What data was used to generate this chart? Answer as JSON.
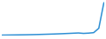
{
  "x": [
    0,
    1,
    2,
    3,
    4,
    5,
    6,
    7,
    8,
    9,
    10,
    11,
    12,
    13,
    14,
    15,
    16,
    17,
    18,
    19,
    20
  ],
  "y": [
    100,
    102,
    104,
    106,
    108,
    110,
    113,
    116,
    120,
    124,
    128,
    133,
    138,
    144,
    150,
    156,
    145,
    152,
    165,
    280,
    950
  ],
  "line_color": "#2e8fd4",
  "line_width": 1.1,
  "background_color": "#ffffff",
  "ylim": [
    80,
    1000
  ]
}
